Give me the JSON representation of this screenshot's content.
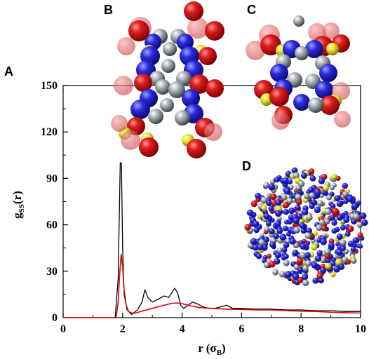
{
  "panels": {
    "a": "A",
    "b": "B",
    "c": "C",
    "d": "D"
  },
  "colors": {
    "atom_red": "#d61a1a",
    "atom_blue": "#2a2ae0",
    "atom_yellow": "#e8e030",
    "atom_gray": "#8a9aa0",
    "series_black": "#000000",
    "series_red": "#e00000"
  },
  "chart_data": {
    "type": "line",
    "xlabel": "r (σB)",
    "ylabel": "gSS(r)",
    "xlabel_parts": {
      "main": "r (σ",
      "sub": "B",
      "tail": ")"
    },
    "ylabel_parts": {
      "main": "g",
      "sub": "SS",
      "tail": "(r)"
    },
    "xlim": [
      0,
      10
    ],
    "ylim": [
      0,
      150
    ],
    "x_ticks": [
      0,
      2,
      4,
      6,
      8,
      10
    ],
    "y_ticks": [
      0,
      30,
      60,
      90,
      120,
      150
    ],
    "grid": false,
    "series": [
      {
        "color": "#000000",
        "x": [
          0,
          1.75,
          1.85,
          1.92,
          1.96,
          2.0,
          2.05,
          2.15,
          2.3,
          2.5,
          2.65,
          2.75,
          2.85,
          3.0,
          3.2,
          3.4,
          3.55,
          3.65,
          3.75,
          3.85,
          3.95,
          4.05,
          4.2,
          4.35,
          4.5,
          4.7,
          4.9,
          5.1,
          5.3,
          5.5,
          5.7,
          6.0,
          6.5,
          7.0,
          7.5,
          8.0,
          8.5,
          9.0,
          9.5,
          10.0
        ],
        "values": [
          0,
          0,
          25,
          100,
          100,
          45,
          15,
          5,
          2,
          5,
          10,
          18,
          13,
          10,
          12,
          14,
          13,
          16,
          19,
          16,
          8,
          6,
          8,
          10,
          9,
          7,
          6,
          6,
          7,
          8,
          6,
          6,
          5.5,
          5.5,
          5,
          5,
          4.5,
          4.5,
          4,
          4
        ]
      },
      {
        "color": "#e00000",
        "x": [
          0,
          1.78,
          1.85,
          1.9,
          1.95,
          2.0,
          2.05,
          2.12,
          2.2,
          2.3,
          2.45,
          2.6,
          2.8,
          3.0,
          3.3,
          3.6,
          3.8,
          4.0,
          4.3,
          4.6,
          5.0,
          5.5,
          6.0,
          6.5,
          7.0,
          7.5,
          8.0,
          8.5,
          9.0,
          9.5,
          10.0
        ],
        "values": [
          0,
          0,
          10,
          28,
          41,
          33,
          18,
          8,
          4,
          3,
          3,
          4,
          5,
          6,
          7.5,
          9,
          9.5,
          9,
          7.5,
          6.5,
          6,
          5.5,
          5.3,
          5,
          5,
          4.5,
          4.2,
          4,
          3.5,
          3.2,
          3
        ]
      }
    ]
  }
}
